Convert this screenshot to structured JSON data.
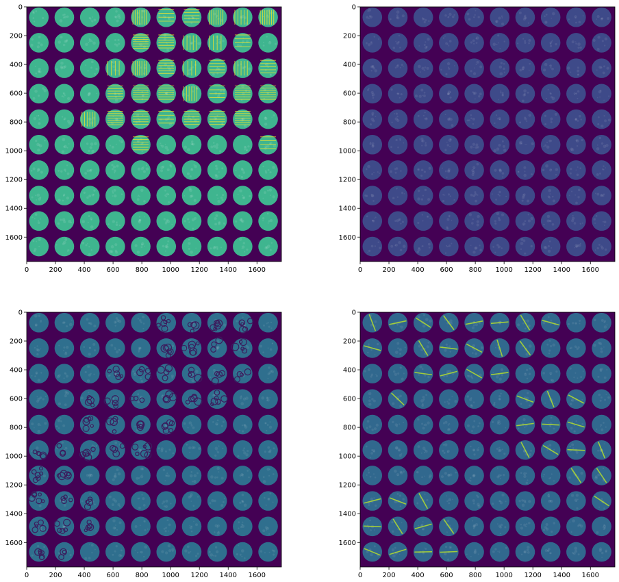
{
  "colormap": {
    "background": "#440154",
    "mid": "#3b528b",
    "teal": "#21918c",
    "green": "#5ec962",
    "yellow": "#fde725"
  },
  "chart_data": [
    {
      "type": "heatmap",
      "panel": "top-left",
      "xticks": [
        "0",
        "200",
        "400",
        "600",
        "800",
        "1000",
        "1200",
        "1400",
        "1600"
      ],
      "yticks": [
        "0",
        "200",
        "400",
        "600",
        "800",
        "1000",
        "1200",
        "1400",
        "1600"
      ],
      "xlim": [
        0,
        1770
      ],
      "ylim": [
        1770,
        0
      ],
      "grid": {
        "rows": 10,
        "cols": 10,
        "cell_pitch": 177,
        "disk_radius": 68
      },
      "intensity": "bright green disks with horizontal/vertical stripe patterns in upper-middle tiles",
      "disk_color": "#3fb58f",
      "artifact_color": "#fde725",
      "artifact_tiles": [
        [
          0,
          4
        ],
        [
          0,
          5
        ],
        [
          0,
          6
        ],
        [
          0,
          7
        ],
        [
          0,
          8
        ],
        [
          0,
          9
        ],
        [
          1,
          4
        ],
        [
          1,
          5
        ],
        [
          1,
          6
        ],
        [
          1,
          7
        ],
        [
          1,
          8
        ],
        [
          2,
          3
        ],
        [
          2,
          4
        ],
        [
          2,
          5
        ],
        [
          2,
          6
        ],
        [
          2,
          7
        ],
        [
          2,
          8
        ],
        [
          2,
          9
        ],
        [
          3,
          3
        ],
        [
          3,
          4
        ],
        [
          3,
          5
        ],
        [
          3,
          6
        ],
        [
          3,
          7
        ],
        [
          3,
          8
        ],
        [
          3,
          9
        ],
        [
          4,
          2
        ],
        [
          4,
          3
        ],
        [
          4,
          4
        ],
        [
          4,
          5
        ],
        [
          4,
          6
        ],
        [
          4,
          7
        ],
        [
          4,
          8
        ],
        [
          5,
          4
        ],
        [
          5,
          9
        ]
      ]
    },
    {
      "type": "heatmap",
      "panel": "top-right",
      "xticks": [
        "0",
        "200",
        "400",
        "600",
        "800",
        "1000",
        "1200",
        "1400",
        "1600"
      ],
      "yticks": [
        "0",
        "200",
        "400",
        "600",
        "800",
        "1000",
        "1200",
        "1400",
        "1600"
      ],
      "xlim": [
        0,
        1770
      ],
      "ylim": [
        1770,
        0
      ],
      "grid": {
        "rows": 10,
        "cols": 10,
        "cell_pitch": 177,
        "disk_radius": 68
      },
      "intensity": "dim speckled disks",
      "disk_color": "#3e4a89",
      "artifact_color": "#5a6fa8",
      "artifact_tiles": []
    },
    {
      "type": "heatmap",
      "panel": "bottom-left",
      "xticks": [
        "0",
        "200",
        "400",
        "600",
        "800",
        "1000",
        "1200",
        "1400",
        "1600"
      ],
      "yticks": [
        "0",
        "200",
        "400",
        "600",
        "800",
        "1000",
        "1200",
        "1400",
        "1600"
      ],
      "xlim": [
        0,
        1770
      ],
      "ylim": [
        1770,
        0
      ],
      "grid": {
        "rows": 10,
        "cols": 10,
        "cell_pitch": 177,
        "disk_radius": 68
      },
      "intensity": "medium teal disks with dark ring clusters",
      "disk_color": "#2f6f8e",
      "artifact_color": "#3b1d5e",
      "artifact_tiles": [
        [
          0,
          5
        ],
        [
          0,
          6
        ],
        [
          0,
          7
        ],
        [
          0,
          8
        ],
        [
          1,
          5
        ],
        [
          1,
          6
        ],
        [
          1,
          7
        ],
        [
          1,
          8
        ],
        [
          2,
          3
        ],
        [
          2,
          4
        ],
        [
          2,
          5
        ],
        [
          2,
          6
        ],
        [
          2,
          7
        ],
        [
          2,
          8
        ],
        [
          3,
          2
        ],
        [
          3,
          3
        ],
        [
          3,
          4
        ],
        [
          3,
          5
        ],
        [
          3,
          6
        ],
        [
          3,
          7
        ],
        [
          4,
          2
        ],
        [
          4,
          3
        ],
        [
          4,
          4
        ],
        [
          4,
          5
        ],
        [
          5,
          0
        ],
        [
          5,
          1
        ],
        [
          5,
          2
        ],
        [
          5,
          3
        ],
        [
          5,
          4
        ],
        [
          6,
          0
        ],
        [
          6,
          1
        ],
        [
          7,
          0
        ],
        [
          7,
          1
        ],
        [
          7,
          2
        ],
        [
          8,
          0
        ],
        [
          8,
          1
        ],
        [
          8,
          2
        ],
        [
          9,
          0
        ],
        [
          9,
          1
        ]
      ]
    },
    {
      "type": "heatmap",
      "panel": "bottom-right",
      "xticks": [
        "0",
        "200",
        "400",
        "600",
        "800",
        "1000",
        "1200",
        "1400",
        "1600"
      ],
      "yticks": [
        "0",
        "200",
        "400",
        "600",
        "800",
        "1000",
        "1200",
        "1400",
        "1600"
      ],
      "xlim": [
        0,
        1770
      ],
      "ylim": [
        1770,
        0
      ],
      "grid": {
        "rows": 10,
        "cols": 10,
        "cell_pitch": 177,
        "disk_radius": 68
      },
      "intensity": "medium disks with bright diagonal streaks",
      "disk_color": "#31688e",
      "artifact_color": "#b5de2b",
      "artifact_tiles": [
        [
          0,
          0
        ],
        [
          0,
          1
        ],
        [
          0,
          2
        ],
        [
          0,
          3
        ],
        [
          0,
          4
        ],
        [
          0,
          5
        ],
        [
          0,
          6
        ],
        [
          0,
          7
        ],
        [
          1,
          0
        ],
        [
          1,
          2
        ],
        [
          1,
          3
        ],
        [
          1,
          4
        ],
        [
          1,
          5
        ],
        [
          1,
          6
        ],
        [
          2,
          2
        ],
        [
          2,
          3
        ],
        [
          2,
          4
        ],
        [
          2,
          5
        ],
        [
          3,
          1
        ],
        [
          3,
          6
        ],
        [
          3,
          7
        ],
        [
          3,
          8
        ],
        [
          4,
          6
        ],
        [
          4,
          7
        ],
        [
          4,
          8
        ],
        [
          5,
          6
        ],
        [
          5,
          7
        ],
        [
          5,
          8
        ],
        [
          5,
          9
        ],
        [
          6,
          8
        ],
        [
          6,
          9
        ],
        [
          7,
          0
        ],
        [
          7,
          1
        ],
        [
          7,
          2
        ],
        [
          7,
          9
        ],
        [
          8,
          0
        ],
        [
          8,
          1
        ],
        [
          8,
          2
        ],
        [
          8,
          3
        ],
        [
          9,
          0
        ],
        [
          9,
          1
        ],
        [
          9,
          2
        ],
        [
          9,
          3
        ]
      ]
    }
  ]
}
